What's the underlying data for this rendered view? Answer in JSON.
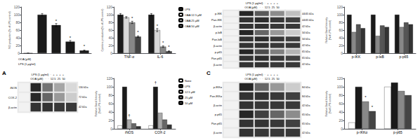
{
  "chart_data": [
    {
      "type": "bar",
      "categories": [
        null,
        null,
        null,
        null,
        null
      ],
      "values": [
        0,
        100,
        73,
        30,
        7
      ],
      "errors": [
        0,
        3,
        4,
        3,
        1
      ],
      "significance": [
        null,
        null,
        "*",
        "*",
        "*"
      ],
      "color": "#1a1a1a",
      "ylabel": "NO production (% of LPS control)",
      "ylim": [
        0,
        120
      ],
      "yticks": [
        0,
        20,
        40,
        60,
        80,
        100,
        120
      ],
      "grid": false,
      "tick_labels": "y",
      "annotations": [
        "OOA (μM)",
        "LPS (1 μg/ml)"
      ]
    },
    {
      "type": "bar",
      "categories": [
        "TNF-α",
        "IL-6"
      ],
      "series": [
        {
          "name": "LPS",
          "color": "#1a1a1a",
          "values": [
            100,
            100
          ],
          "errors": [
            3,
            3
          ]
        },
        {
          "name": "OAA 12.5 μM",
          "color": "#d8d8d8",
          "values": [
            93,
            60
          ],
          "errors": [
            2,
            4
          ],
          "significance": [
            null,
            "*"
          ]
        },
        {
          "name": "OAA 25 μM",
          "color": "#888888",
          "values": [
            80,
            17
          ],
          "errors": [
            3,
            2
          ],
          "significance": [
            "*",
            "*"
          ]
        },
        {
          "name": "OAA 50 μM",
          "color": "#444444",
          "values": [
            43,
            5
          ],
          "errors": [
            2,
            1
          ],
          "significance": [
            "*",
            "*"
          ]
        }
      ],
      "ylabel": "Cytokine production(% of LPS control)",
      "ylim": [
        0,
        120
      ],
      "yticks": [
        0,
        20,
        40,
        60,
        80,
        100,
        120
      ],
      "legend": "upper right",
      "grid": false
    },
    {
      "type": "heatmap",
      "rows": [
        "p-IKK",
        "Pan-IKK",
        "β-actin",
        "p-IκB",
        "Pan-IκB",
        "β-actin",
        "p-p65",
        "Pan-p65",
        "β-actin"
      ],
      "sizes": [
        "44/45 kDa",
        "44/45 kDa",
        "42 kDa",
        "34 kDa",
        "34 kDa",
        "42 kDa",
        "65 kDa",
        "65 kDa",
        "42 kDa"
      ],
      "cells": [
        [
          0.05,
          0.85,
          0.65,
          0.45,
          0.25
        ],
        [
          0.05,
          0.8,
          0.82,
          0.78,
          0.75
        ],
        [
          0.05,
          0.8,
          0.8,
          0.78,
          0.78
        ],
        [
          0.05,
          0.85,
          0.6,
          0.4,
          0.2
        ],
        [
          0.05,
          0.8,
          0.82,
          0.78,
          0.75
        ],
        [
          0.05,
          0.8,
          0.8,
          0.78,
          0.78
        ],
        [
          0.05,
          0.85,
          0.7,
          0.5,
          0.3
        ],
        [
          0.05,
          0.8,
          0.82,
          0.78,
          0.75
        ],
        [
          0.05,
          0.8,
          0.8,
          0.78,
          0.78
        ]
      ],
      "color_range": [
        0,
        1
      ],
      "annotations": [
        "LPS (1 μg/ml)  ·  +  +  +  +",
        "OOA (μM)   ·  ·  12.5  25  50"
      ]
    },
    {
      "type": "bar",
      "categories": [
        "p-IKK",
        "p-IκB",
        "p-p65"
      ],
      "series": [
        {
          "color": "#1a1a1a",
          "values": [
            100,
            100,
            100
          ]
        },
        {
          "color": "#888888",
          "values": [
            55,
            45,
            68
          ]
        },
        {
          "color": "#555555",
          "values": [
            75,
            72,
            80
          ]
        },
        {
          "color": "#333333",
          "values": [
            65,
            68,
            75
          ]
        }
      ],
      "ylabel": "Relative Band Intensity\n(%of LPS control)",
      "ylim": [
        0,
        120
      ],
      "yticks": [
        0,
        20,
        40,
        60,
        80,
        100,
        120
      ],
      "grid": false
    },
    {
      "type": "heatmap",
      "title": "A",
      "rows": [
        "iNOS",
        "COX-2",
        "β-actin"
      ],
      "sizes": [
        "130 kDa",
        "72 kDa",
        "42 kDa"
      ],
      "cells": [
        [
          0.05,
          0.85,
          0.55,
          0.35,
          0.15
        ],
        [
          0.05,
          0.85,
          0.6,
          0.4,
          0.2
        ],
        [
          0.05,
          0.8,
          0.8,
          0.78,
          0.78
        ]
      ],
      "color_range": [
        0,
        1
      ],
      "annotations": [
        "LPS (1 μg/ml)  ·  +  +  +  +",
        "OOA (μM)   ·  ·  12.5  25  50"
      ]
    },
    {
      "type": "bar",
      "categories": [
        "iNOS",
        "COX-2"
      ],
      "series": [
        {
          "name": "None",
          "color": "#ffffff",
          "values": [
            8,
            8
          ]
        },
        {
          "name": "LPS",
          "color": "#1a1a1a",
          "values": [
            100,
            100
          ],
          "significance": [
            null,
            "†"
          ]
        },
        {
          "name": "12.5 μM",
          "color": "#aaaaaa",
          "values": [
            22,
            38
          ],
          "significance": [
            "†",
            null
          ]
        },
        {
          "name": "25 μM",
          "color": "#666666",
          "values": [
            13,
            22
          ]
        },
        {
          "name": "50 μM",
          "color": "#333333",
          "values": [
            6,
            10
          ]
        }
      ],
      "ylabel": "Relative Band Intensity\n(%of LPS control)",
      "ylim": [
        0,
        120
      ],
      "yticks": [
        0,
        20,
        40,
        60,
        80,
        100,
        120
      ],
      "legend": "upper right",
      "grid": false
    },
    {
      "type": "heatmap",
      "title": "C",
      "rows": [
        "p-IKKα",
        "Pan-IKKα",
        "β-actin",
        "p-p65",
        "Pan-p65",
        "β-actin"
      ],
      "sizes": [
        "84 kDa",
        "84 kDa",
        "42 kDa",
        "65 kDa",
        "65 kDa",
        "42 kDa"
      ],
      "cells": [
        [
          0.05,
          0.85,
          0.6,
          0.4,
          0.2
        ],
        [
          0.05,
          0.8,
          0.8,
          0.78,
          0.75
        ],
        [
          0.05,
          0.8,
          0.78,
          0.78,
          0.78
        ],
        [
          0.05,
          0.85,
          0.75,
          0.6,
          0.45
        ],
        [
          0.05,
          0.8,
          0.8,
          0.78,
          0.75
        ],
        [
          0.05,
          0.8,
          0.78,
          0.78,
          0.78
        ]
      ],
      "color_range": [
        0,
        1
      ],
      "annotations": [
        "LPS (1 μg/ml)  ·  +  +  +  +",
        "OOA (μM)   ·  ·  12.5  25  50"
      ]
    },
    {
      "type": "bar",
      "categories": [
        "p-IKKα",
        "p-p65"
      ],
      "series": [
        {
          "color": "#ffffff",
          "values": [
            15,
            100
          ]
        },
        {
          "color": "#1a1a1a",
          "values": [
            100,
            110
          ]
        },
        {
          "color": "#888888",
          "values": [
            65,
            90
          ],
          "significance": [
            "*",
            null
          ]
        },
        {
          "color": "#444444",
          "values": [
            42,
            80
          ],
          "significance": [
            "*",
            null
          ]
        }
      ],
      "ylabel": "Relative Band Intensity\n(%of LPS control)",
      "ylim": [
        0,
        120
      ],
      "yticks": [
        0,
        20,
        40,
        60,
        80,
        100,
        120
      ],
      "grid": false
    }
  ]
}
